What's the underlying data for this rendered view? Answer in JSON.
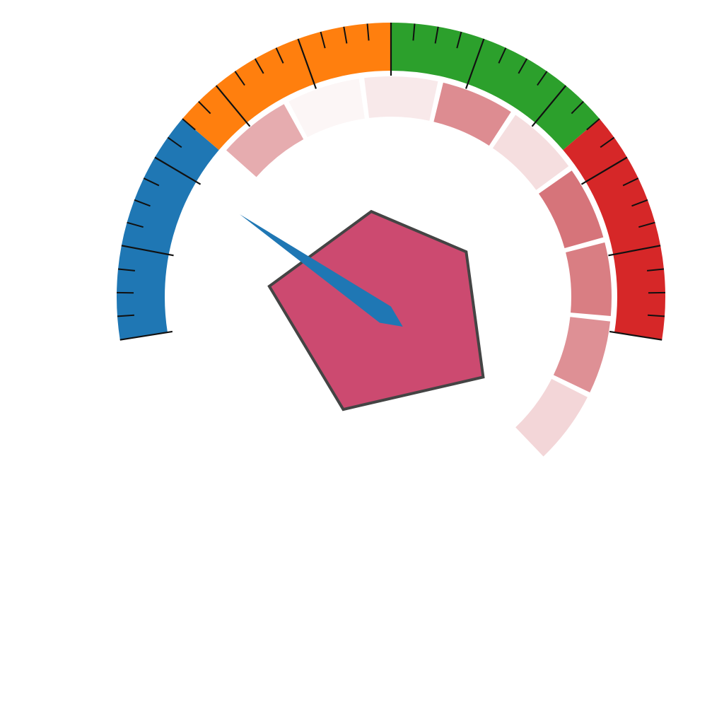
{
  "chart_data": {
    "type": "gauge",
    "title": "",
    "value_range": [
      0,
      100
    ],
    "value": 22,
    "needle_color": "#1f77b4",
    "bands": [
      {
        "from": 0,
        "to": 25,
        "color": "#1f77b4"
      },
      {
        "from": 25,
        "to": 50,
        "color": "#ff7f0e"
      },
      {
        "from": 50,
        "to": 75,
        "color": "#2ca02c"
      },
      {
        "from": 75,
        "to": 100,
        "color": "#d62728"
      }
    ],
    "ticks": {
      "minor_step": 2.5,
      "major_step": 10
    },
    "inner_ring": {
      "base_color": "#c8464e",
      "segments": [
        {
          "from": 0.0,
          "to": 1.0,
          "intensity": 0.45
        },
        {
          "from": 1.0,
          "to": 2.0,
          "intensity": 0.05
        },
        {
          "from": 2.0,
          "to": 3.0,
          "intensity": 0.12
        },
        {
          "from": 3.0,
          "to": 4.0,
          "intensity": 0.62
        },
        {
          "from": 4.0,
          "to": 5.0,
          "intensity": 0.18
        },
        {
          "from": 5.0,
          "to": 6.0,
          "intensity": 0.75
        },
        {
          "from": 6.0,
          "to": 7.0,
          "intensity": 0.7
        },
        {
          "from": 7.0,
          "to": 8.0,
          "intensity": 0.6
        },
        {
          "from": 8.0,
          "to": 9.0,
          "intensity": 0.22
        }
      ],
      "segment_range": [
        0,
        9
      ]
    },
    "radar": {
      "fill": "#cc4a70",
      "stroke": "#444444",
      "axes": 5,
      "values": [
        0.28,
        0.28,
        0.39,
        0.39,
        0.39
      ],
      "range": [
        0,
        1
      ]
    }
  }
}
